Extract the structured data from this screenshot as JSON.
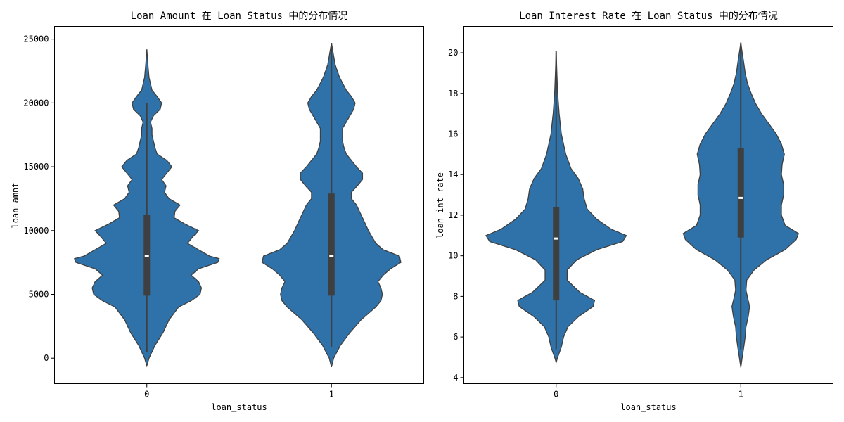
{
  "chart_data": [
    {
      "type": "violin",
      "title": "Loan Amount 在 Loan Status 中的分布情况",
      "xlabel": "loan_status",
      "ylabel": "loan_amnt",
      "categories": [
        "0",
        "1"
      ],
      "ylim": [
        -2000,
        26000
      ],
      "yticks": [
        0,
        5000,
        10000,
        15000,
        20000,
        25000
      ],
      "color": "#2f72a9",
      "grid": false,
      "violins": [
        {
          "category": "0",
          "min": 500,
          "q1": 4900,
          "median": 8000,
          "q3": 11200,
          "max": 20000,
          "density": [
            [
              -600,
              0.0
            ],
            [
              0,
              0.03
            ],
            [
              1000,
              0.11
            ],
            [
              2000,
              0.22
            ],
            [
              3000,
              0.3
            ],
            [
              4000,
              0.43
            ],
            [
              4500,
              0.6
            ],
            [
              5000,
              0.72
            ],
            [
              5500,
              0.74
            ],
            [
              6000,
              0.7
            ],
            [
              6500,
              0.6
            ],
            [
              7000,
              0.7
            ],
            [
              7500,
              0.96
            ],
            [
              7800,
              0.98
            ],
            [
              8000,
              0.85
            ],
            [
              8500,
              0.7
            ],
            [
              9000,
              0.55
            ],
            [
              9500,
              0.62
            ],
            [
              10000,
              0.7
            ],
            [
              10500,
              0.52
            ],
            [
              11000,
              0.37
            ],
            [
              11500,
              0.38
            ],
            [
              12000,
              0.45
            ],
            [
              12500,
              0.3
            ],
            [
              13000,
              0.24
            ],
            [
              13500,
              0.26
            ],
            [
              14000,
              0.2
            ],
            [
              14500,
              0.27
            ],
            [
              15000,
              0.34
            ],
            [
              15500,
              0.27
            ],
            [
              16000,
              0.14
            ],
            [
              16500,
              0.11
            ],
            [
              17000,
              0.09
            ],
            [
              17500,
              0.07
            ],
            [
              18000,
              0.07
            ],
            [
              18500,
              0.05
            ],
            [
              19000,
              0.09
            ],
            [
              19500,
              0.18
            ],
            [
              20000,
              0.2
            ],
            [
              20500,
              0.14
            ],
            [
              21000,
              0.07
            ],
            [
              22000,
              0.03
            ],
            [
              23000,
              0.015
            ],
            [
              24200,
              0.0
            ]
          ]
        },
        {
          "category": "1",
          "min": 900,
          "q1": 4900,
          "median": 8000,
          "q3": 12900,
          "max": 24700,
          "density": [
            [
              -700,
              0.0
            ],
            [
              0,
              0.03
            ],
            [
              1000,
              0.12
            ],
            [
              2000,
              0.25
            ],
            [
              3000,
              0.4
            ],
            [
              4000,
              0.6
            ],
            [
              4500,
              0.67
            ],
            [
              5000,
              0.69
            ],
            [
              5500,
              0.67
            ],
            [
              6000,
              0.63
            ],
            [
              6500,
              0.7
            ],
            [
              7000,
              0.8
            ],
            [
              7500,
              0.94
            ],
            [
              8000,
              0.92
            ],
            [
              8500,
              0.7
            ],
            [
              9000,
              0.6
            ],
            [
              10000,
              0.5
            ],
            [
              11000,
              0.42
            ],
            [
              11500,
              0.38
            ],
            [
              12000,
              0.34
            ],
            [
              12500,
              0.27
            ],
            [
              13000,
              0.27
            ],
            [
              13500,
              0.35
            ],
            [
              14000,
              0.42
            ],
            [
              14500,
              0.42
            ],
            [
              15000,
              0.34
            ],
            [
              15500,
              0.27
            ],
            [
              16000,
              0.2
            ],
            [
              16500,
              0.17
            ],
            [
              17000,
              0.15
            ],
            [
              18000,
              0.15
            ],
            [
              18500,
              0.2
            ],
            [
              19500,
              0.3
            ],
            [
              20000,
              0.32
            ],
            [
              20500,
              0.27
            ],
            [
              21000,
              0.2
            ],
            [
              22000,
              0.11
            ],
            [
              23000,
              0.05
            ],
            [
              24000,
              0.02
            ],
            [
              24700,
              0.0
            ]
          ]
        }
      ]
    },
    {
      "type": "violin",
      "title": "Loan Interest Rate 在 Loan Status 中的分布情况",
      "xlabel": "loan_status",
      "ylabel": "loan_int_rate",
      "categories": [
        "0",
        "1"
      ],
      "ylim": [
        3.7,
        21.3
      ],
      "yticks": [
        4,
        6,
        8,
        10,
        12,
        14,
        16,
        18,
        20
      ],
      "color": "#2f72a9",
      "grid": false,
      "violins": [
        {
          "category": "0",
          "min": 5.4,
          "q1": 7.8,
          "median": 10.85,
          "q3": 12.4,
          "max": 20.1,
          "density": [
            [
              4.75,
              0.0
            ],
            [
              5.0,
              0.02
            ],
            [
              5.5,
              0.07
            ],
            [
              6.0,
              0.1
            ],
            [
              6.5,
              0.16
            ],
            [
              7.0,
              0.3
            ],
            [
              7.5,
              0.5
            ],
            [
              7.8,
              0.52
            ],
            [
              8.2,
              0.32
            ],
            [
              8.8,
              0.15
            ],
            [
              9.3,
              0.15
            ],
            [
              9.8,
              0.28
            ],
            [
              10.3,
              0.55
            ],
            [
              10.7,
              0.9
            ],
            [
              11.0,
              0.95
            ],
            [
              11.3,
              0.75
            ],
            [
              11.8,
              0.55
            ],
            [
              12.3,
              0.42
            ],
            [
              12.8,
              0.38
            ],
            [
              13.3,
              0.36
            ],
            [
              13.8,
              0.3
            ],
            [
              14.3,
              0.2
            ],
            [
              15.0,
              0.13
            ],
            [
              16.0,
              0.07
            ],
            [
              17.0,
              0.04
            ],
            [
              18.0,
              0.02
            ],
            [
              19.0,
              0.01
            ],
            [
              20.1,
              0.0
            ]
          ]
        },
        {
          "category": "1",
          "min": 5.4,
          "q1": 10.9,
          "median": 12.85,
          "q3": 15.3,
          "max": 20.5,
          "density": [
            [
              4.5,
              0.0
            ],
            [
              5.0,
              0.02
            ],
            [
              5.5,
              0.04
            ],
            [
              6.0,
              0.06
            ],
            [
              6.5,
              0.07
            ],
            [
              7.0,
              0.1
            ],
            [
              7.5,
              0.12
            ],
            [
              7.8,
              0.1
            ],
            [
              8.3,
              0.07
            ],
            [
              8.8,
              0.08
            ],
            [
              9.3,
              0.18
            ],
            [
              9.8,
              0.35
            ],
            [
              10.3,
              0.6
            ],
            [
              10.8,
              0.75
            ],
            [
              11.1,
              0.78
            ],
            [
              11.5,
              0.6
            ],
            [
              12.0,
              0.55
            ],
            [
              12.5,
              0.55
            ],
            [
              13.0,
              0.58
            ],
            [
              13.5,
              0.58
            ],
            [
              14.0,
              0.55
            ],
            [
              14.5,
              0.56
            ],
            [
              15.0,
              0.59
            ],
            [
              15.5,
              0.55
            ],
            [
              16.0,
              0.48
            ],
            [
              16.5,
              0.38
            ],
            [
              17.0,
              0.28
            ],
            [
              17.5,
              0.2
            ],
            [
              18.0,
              0.14
            ],
            [
              18.5,
              0.09
            ],
            [
              19.0,
              0.06
            ],
            [
              19.5,
              0.04
            ],
            [
              20.0,
              0.02
            ],
            [
              20.5,
              0.0
            ]
          ]
        }
      ]
    }
  ]
}
